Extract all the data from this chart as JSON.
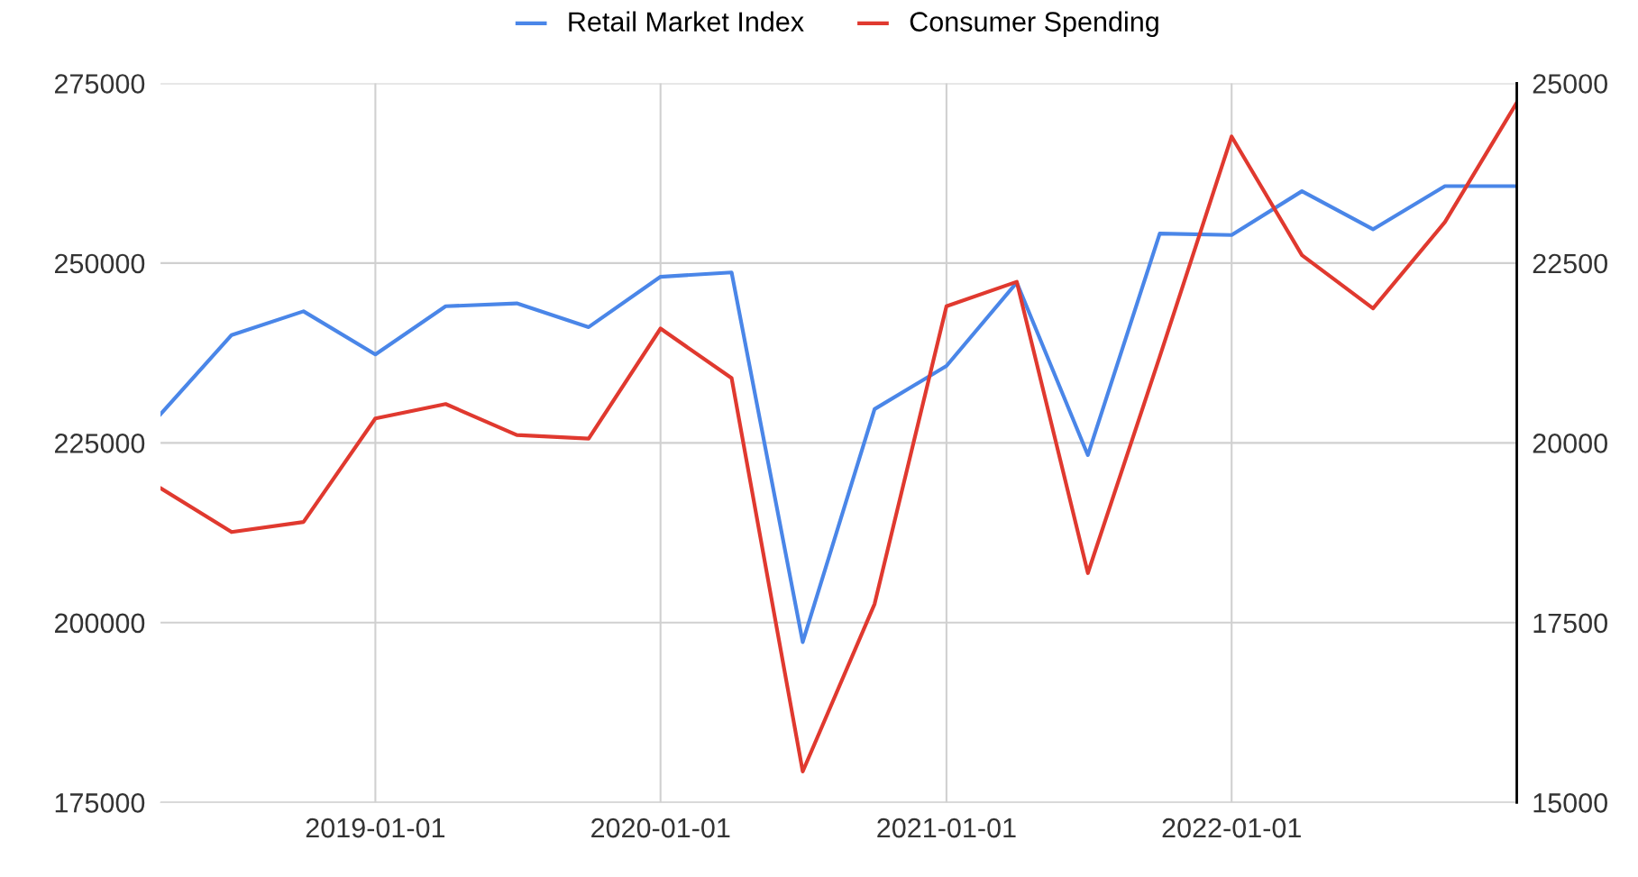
{
  "chart_data": {
    "type": "line",
    "x": [
      "2018-04-01",
      "2018-07-01",
      "2018-10-01",
      "2019-01-01",
      "2019-04-01",
      "2019-07-01",
      "2019-10-01",
      "2020-01-01",
      "2020-04-01",
      "2020-07-01",
      "2020-10-01",
      "2021-01-01",
      "2021-04-01",
      "2021-07-01",
      "2021-10-01",
      "2022-01-01",
      "2022-04-01",
      "2022-07-01",
      "2022-10-01",
      "2023-01-01"
    ],
    "series": [
      {
        "name": "Retail Market Index",
        "color": "#4a86e8",
        "values": [
          229000,
          240000,
          243300,
          237300,
          244000,
          244400,
          241100,
          248100,
          248700,
          197300,
          229700,
          235700,
          247300,
          223300,
          254100,
          253900,
          260000,
          254700,
          260700,
          260700
        ]
      },
      {
        "name": "Consumer Spending",
        "color": "#e0392f",
        "axis": "y2",
        "values": [
          19370,
          18760,
          18900,
          20340,
          20540,
          20110,
          20060,
          21590,
          20900,
          15430,
          17760,
          21900,
          22240,
          18190,
          21200,
          24260,
          22610,
          21870,
          23070,
          24730
        ]
      }
    ],
    "xlim": [
      "2018-04-01",
      "2023-01-01"
    ],
    "xticks": [
      {
        "value": "2019-01-01",
        "label": "2019-01-01"
      },
      {
        "value": "2020-01-01",
        "label": "2020-01-01"
      },
      {
        "value": "2021-01-01",
        "label": "2021-01-01"
      },
      {
        "value": "2022-01-01",
        "label": "2022-01-01"
      }
    ],
    "ylim": [
      175000,
      275000
    ],
    "yticks": [
      175000,
      200000,
      225000,
      250000,
      275000
    ],
    "y2lim": [
      15000,
      25000
    ],
    "y2ticks": [
      15000,
      17500,
      20000,
      22500,
      25000
    ],
    "grid": true,
    "legend": "top",
    "marker": "none",
    "line_style": "solid"
  }
}
